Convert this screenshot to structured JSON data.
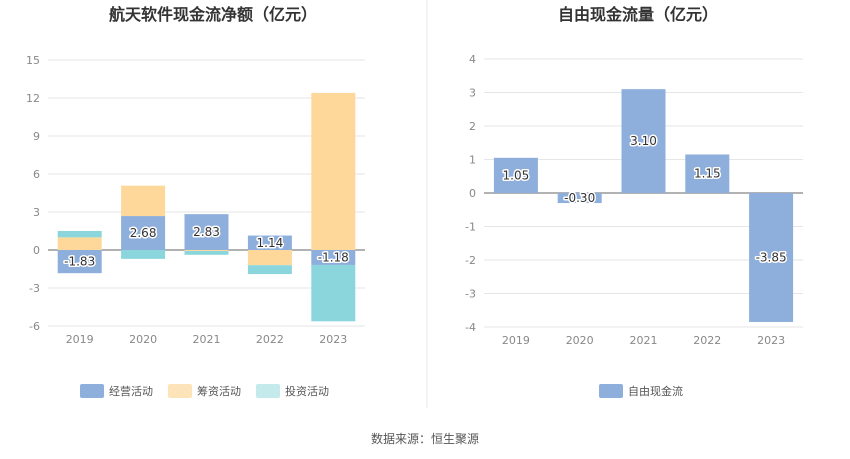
{
  "chart_data": [
    {
      "type": "bar",
      "stacked": true,
      "title": "航天软件现金流净额（亿元）",
      "categories": [
        "2019",
        "2020",
        "2021",
        "2022",
        "2023"
      ],
      "ylim": [
        -6,
        15
      ],
      "yticks": [
        -6,
        -3,
        0,
        3,
        6,
        9,
        12,
        15
      ],
      "grid": true,
      "legend_position": "bottom",
      "series": [
        {
          "name": "经营活动",
          "color": "#8eaedb",
          "values": [
            -1.83,
            2.68,
            2.83,
            1.14,
            -1.18
          ],
          "show_labels": true
        },
        {
          "name": "筹资活动",
          "color": "#fdd89a",
          "values": [
            1.0,
            2.4,
            -0.08,
            -1.2,
            12.4
          ],
          "show_labels": false
        },
        {
          "name": "投资活动",
          "color": "#8ad6dc",
          "values": [
            0.5,
            -0.7,
            -0.3,
            -0.7,
            -4.45
          ],
          "show_labels": false
        }
      ],
      "legend_colors": [
        "#8eaedb",
        "#fde4b8",
        "#c4eaec"
      ]
    },
    {
      "type": "bar",
      "stacked": false,
      "title": "自由现金流量（亿元）",
      "categories": [
        "2019",
        "2020",
        "2021",
        "2022",
        "2023"
      ],
      "ylim": [
        -4,
        4
      ],
      "yticks": [
        -4,
        -3,
        -2,
        -1,
        0,
        1,
        2,
        3,
        4
      ],
      "grid": true,
      "legend_position": "bottom",
      "series": [
        {
          "name": "自由现金流",
          "color": "#8eaedb",
          "values": [
            1.05,
            -0.3,
            3.1,
            1.15,
            -3.85
          ],
          "show_labels": true
        }
      ],
      "legend_colors": [
        "#8eaedb"
      ]
    }
  ],
  "footer": "数据来源：恒生聚源"
}
